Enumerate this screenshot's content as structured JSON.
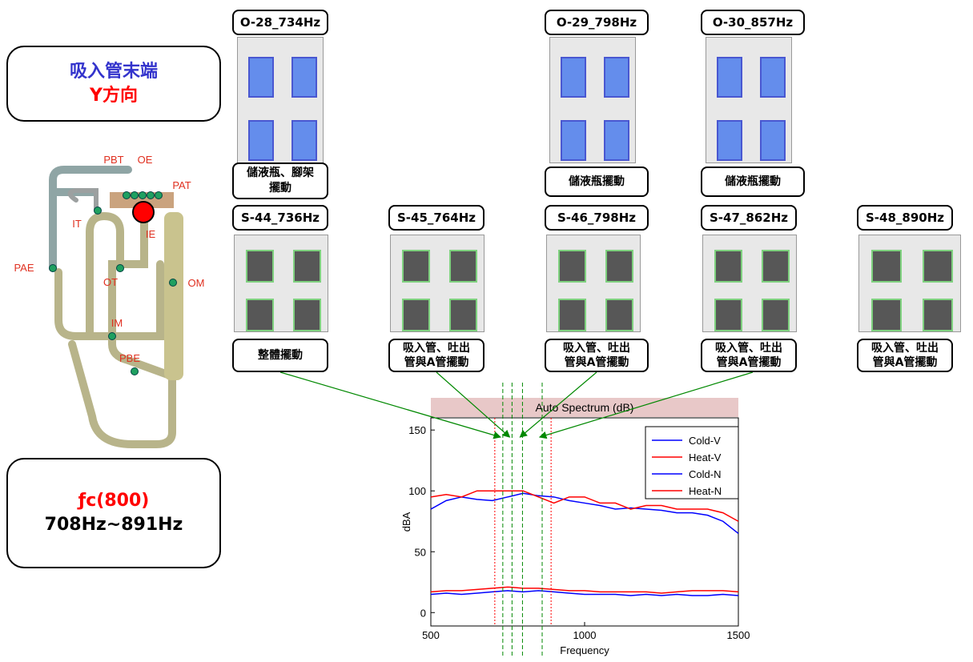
{
  "info_box": {
    "line1": "吸入管末端",
    "line2": "Y方向"
  },
  "fc_box": {
    "line1": "ƒc(800)",
    "line2": "708Hz~891Hz"
  },
  "pipe_labels": [
    "PBT",
    "OE",
    "PAT",
    "IT",
    "IE",
    "PAE",
    "OT",
    "OM",
    "IM",
    "PBE"
  ],
  "modes_top": [
    {
      "label": "O-28_734Hz",
      "desc": "儲液瓶、腳架\n擺動"
    },
    {
      "label": "O-29_798Hz",
      "desc": "儲液瓶擺動"
    },
    {
      "label": "O-30_857Hz",
      "desc": "儲液瓶擺動"
    }
  ],
  "modes_bottom": [
    {
      "label": "S-44_736Hz",
      "desc": "整體擺動"
    },
    {
      "label": "S-45_764Hz",
      "desc": "吸入管、吐出\n管與A管擺動"
    },
    {
      "label": "S-46_798Hz",
      "desc": "吸入管、吐出\n管與A管擺動"
    },
    {
      "label": "S-47_862Hz",
      "desc": "吸入管、吐出\n管與A管擺動"
    },
    {
      "label": "S-48_890Hz",
      "desc": "吸入管、吐出\n管與A管擺動"
    }
  ],
  "chart_data": {
    "type": "line",
    "title": "Auto Spectrum (dB)",
    "x_label": "Frequency",
    "y_label": "dBA",
    "xlim": [
      500,
      1500
    ],
    "xticks": [
      500,
      1000,
      1500
    ],
    "ylim": [
      -11,
      160
    ],
    "yticks": [
      0,
      50,
      100,
      150
    ],
    "band_lines": [
      708,
      891
    ],
    "mode_lines": [
      734,
      764,
      798,
      862
    ],
    "x": [
      500,
      550,
      600,
      650,
      700,
      750,
      800,
      850,
      900,
      950,
      1000,
      1050,
      1100,
      1150,
      1200,
      1250,
      1300,
      1350,
      1400,
      1450,
      1500
    ],
    "series": [
      {
        "name": "Cold-V",
        "color": "#0000ff",
        "values": [
          85,
          92,
          95,
          93,
          92,
          95,
          98,
          96,
          95,
          92,
          90,
          88,
          85,
          86,
          85,
          84,
          82,
          82,
          80,
          75,
          65
        ]
      },
      {
        "name": "Heat-V",
        "color": "#ff0000",
        "values": [
          95,
          97,
          95,
          100,
          100,
          100,
          100,
          95,
          90,
          95,
          95,
          90,
          90,
          85,
          88,
          88,
          85,
          85,
          85,
          82,
          75
        ]
      },
      {
        "name": "Cold-N",
        "color": "#0000ff",
        "values": [
          15,
          16,
          15,
          16,
          17,
          18,
          17,
          18,
          17,
          16,
          15,
          15,
          15,
          14,
          15,
          14,
          15,
          14,
          14,
          15,
          14
        ]
      },
      {
        "name": "Heat-N",
        "color": "#ff0000",
        "values": [
          17,
          18,
          18,
          19,
          20,
          21,
          20,
          20,
          19,
          18,
          18,
          17,
          17,
          17,
          17,
          16,
          17,
          18,
          18,
          18,
          17
        ]
      }
    ]
  }
}
